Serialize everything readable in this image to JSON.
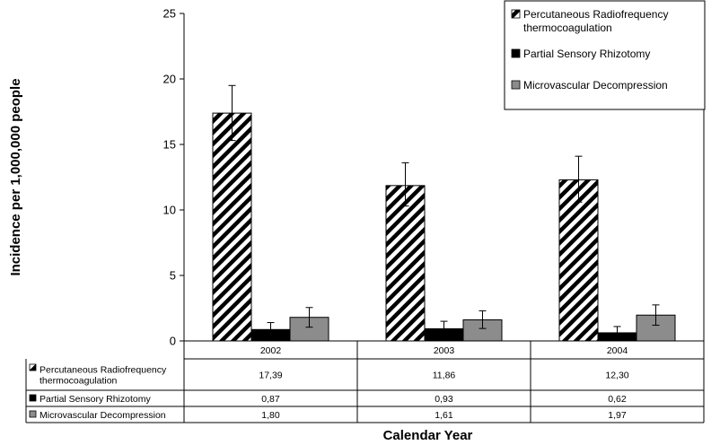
{
  "chart_data": {
    "type": "bar",
    "xlabel": "Calendar Year",
    "ylabel": "Incidence per 1,000,000 people",
    "ylim": [
      0,
      25
    ],
    "yticks": [
      0,
      5,
      10,
      15,
      20,
      25
    ],
    "categories": [
      "2002",
      "2003",
      "2004"
    ],
    "series": [
      {
        "name": "Percutaneous Radiofrequency thermocoagulation",
        "legend_lines": [
          "Percutaneous Radiofrequency",
          "thermocoagulation"
        ],
        "table_lines": [
          "Percutaneous Radiofrequency",
          "thermocoagulation"
        ],
        "fill": "hatch",
        "values": [
          17.39,
          11.86,
          12.3
        ],
        "labels": [
          "17,39",
          "11,86",
          "12,30"
        ],
        "error_upper": [
          19.5,
          13.6,
          14.1
        ],
        "error_lower": [
          15.3,
          10.3,
          10.6
        ]
      },
      {
        "name": "Partial Sensory Rhizotomy",
        "legend_lines": [
          "Partial Sensory Rhizotomy"
        ],
        "table_lines": [
          "Partial Sensory Rhizotomy"
        ],
        "fill": "#000000",
        "values": [
          0.87,
          0.93,
          0.62
        ],
        "labels": [
          "0,87",
          "0,93",
          "0,62"
        ],
        "error_upper": [
          1.4,
          1.5,
          1.1
        ],
        "error_lower": [
          0.4,
          0.4,
          0.2
        ]
      },
      {
        "name": "Microvascular Decompression",
        "legend_lines": [
          "Microvascular Decompression"
        ],
        "table_lines": [
          "Microvascular Decompression"
        ],
        "fill": "#8c8c8c",
        "values": [
          1.8,
          1.61,
          1.97
        ],
        "labels": [
          "1,80",
          "1,61",
          "1,97"
        ],
        "error_upper": [
          2.55,
          2.3,
          2.75
        ],
        "error_lower": [
          1.05,
          0.95,
          1.2
        ]
      }
    ],
    "legend_position": "top-right",
    "grid": false
  }
}
